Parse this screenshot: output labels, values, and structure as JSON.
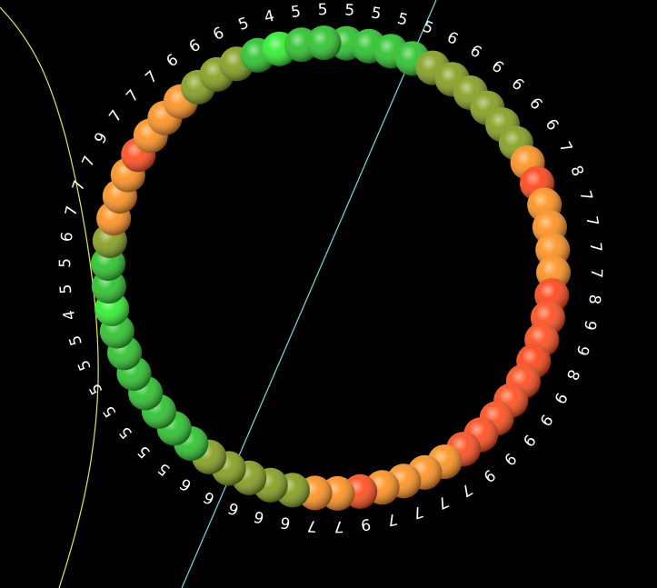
{
  "scene": {
    "background": "#000000",
    "trace_colors": {
      "yellow": "#e6e64a",
      "cyan": "#6ae0e0"
    },
    "palette": {
      "4": "#22ee22",
      "5": "#1fc01f",
      "6": "#7d9a12",
      "7": "#ff8c14",
      "8": "#ff3a0a",
      "9": "#ff4410"
    },
    "residues": [
      {
        "label": "5",
        "value": 5
      },
      {
        "label": "5",
        "value": 5
      },
      {
        "label": "5",
        "value": 5
      },
      {
        "label": "5",
        "value": 5
      },
      {
        "label": "6",
        "value": 6
      },
      {
        "label": "6",
        "value": 6
      },
      {
        "label": "6",
        "value": 6
      },
      {
        "label": "6",
        "value": 6
      },
      {
        "label": "6",
        "value": 6
      },
      {
        "label": "6",
        "value": 6
      },
      {
        "label": "7",
        "value": 7
      },
      {
        "label": "8",
        "value": 8
      },
      {
        "label": "7",
        "value": 7
      },
      {
        "label": "7",
        "value": 7
      },
      {
        "label": "7",
        "value": 7
      },
      {
        "label": "7",
        "value": 7
      },
      {
        "label": "8",
        "value": 8
      },
      {
        "label": "9",
        "value": 9
      },
      {
        "label": "9",
        "value": 9
      },
      {
        "label": "8",
        "value": 8
      },
      {
        "label": "9",
        "value": 9
      },
      {
        "label": "9",
        "value": 9
      },
      {
        "label": "9",
        "value": 9
      },
      {
        "label": "9",
        "value": 9
      },
      {
        "label": "9",
        "value": 9
      },
      {
        "label": "7",
        "value": 7
      },
      {
        "label": "7",
        "value": 7
      },
      {
        "label": "7",
        "value": 7
      },
      {
        "label": "7",
        "value": 7
      },
      {
        "label": "9",
        "value": 9
      },
      {
        "label": "7",
        "value": 7
      },
      {
        "label": "7",
        "value": 7
      },
      {
        "label": "6",
        "value": 6
      },
      {
        "label": "6",
        "value": 6
      },
      {
        "label": "6",
        "value": 6
      },
      {
        "label": "6",
        "value": 6
      },
      {
        "label": "6",
        "value": 6
      },
      {
        "label": "5",
        "value": 5
      },
      {
        "label": "5",
        "value": 5
      },
      {
        "label": "5",
        "value": 5
      },
      {
        "label": "5",
        "value": 5
      },
      {
        "label": "5",
        "value": 5
      },
      {
        "label": "5",
        "value": 5
      },
      {
        "label": "5",
        "value": 5
      },
      {
        "label": "4",
        "value": 4
      },
      {
        "label": "5",
        "value": 5
      },
      {
        "label": "5",
        "value": 5
      },
      {
        "label": "6",
        "value": 6
      },
      {
        "label": "7",
        "value": 7
      },
      {
        "label": "7",
        "value": 7
      },
      {
        "label": "7",
        "value": 7
      },
      {
        "label": "9",
        "value": 9
      },
      {
        "label": "7",
        "value": 7
      },
      {
        "label": "7",
        "value": 7
      },
      {
        "label": "7",
        "value": 7
      },
      {
        "label": "6",
        "value": 6
      },
      {
        "label": "6",
        "value": 6
      },
      {
        "label": "6",
        "value": 6
      },
      {
        "label": "5",
        "value": 5
      },
      {
        "label": "4",
        "value": 4
      },
      {
        "label": "5",
        "value": 5
      },
      {
        "label": "5",
        "value": 5
      }
    ]
  }
}
